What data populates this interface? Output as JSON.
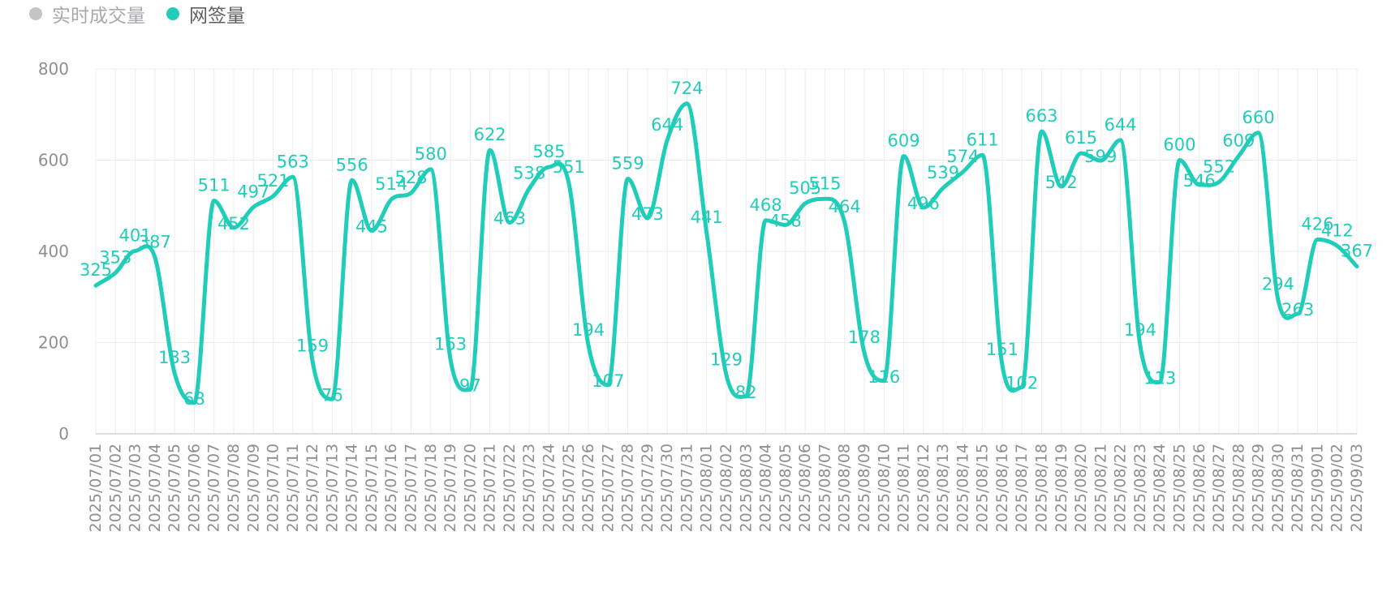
{
  "legend": [
    {
      "label": "实时成交量",
      "color": "#c4c4c8",
      "text_color": "#a8a8ad",
      "active": false
    },
    {
      "label": "网签量",
      "color": "#1fcdb9",
      "text_color": "#5f5f66",
      "active": true
    }
  ],
  "chart_data": {
    "type": "line",
    "title": "",
    "xlabel": "",
    "ylabel": "",
    "ylim": [
      0,
      800
    ],
    "yticks": [
      0,
      200,
      400,
      600,
      800
    ],
    "grid": true,
    "legend_position": "top-left",
    "categories": [
      "2025/07/01",
      "2025/07/02",
      "2025/07/03",
      "2025/07/04",
      "2025/07/05",
      "2025/07/06",
      "2025/07/07",
      "2025/07/08",
      "2025/07/09",
      "2025/07/10",
      "2025/07/11",
      "2025/07/12",
      "2025/07/13",
      "2025/07/14",
      "2025/07/15",
      "2025/07/16",
      "2025/07/17",
      "2025/07/18",
      "2025/07/19",
      "2025/07/20",
      "2025/07/21",
      "2025/07/22",
      "2025/07/23",
      "2025/07/24",
      "2025/07/25",
      "2025/07/26",
      "2025/07/27",
      "2025/07/28",
      "2025/07/29",
      "2025/07/30",
      "2025/07/31",
      "2025/08/01",
      "2025/08/02",
      "2025/08/03",
      "2025/08/04",
      "2025/08/05",
      "2025/08/06",
      "2025/08/07",
      "2025/08/08",
      "2025/08/09",
      "2025/08/10",
      "2025/08/11",
      "2025/08/12",
      "2025/08/13",
      "2025/08/14",
      "2025/08/15",
      "2025/08/16",
      "2025/08/17",
      "2025/08/18",
      "2025/08/19",
      "2025/08/20",
      "2025/08/21",
      "2025/08/22",
      "2025/08/23",
      "2025/08/24",
      "2025/08/25",
      "2025/08/26",
      "2025/08/27",
      "2025/08/28",
      "2025/08/29",
      "2025/08/30",
      "2025/08/31",
      "2025/09/01",
      "2025/09/02",
      "2025/09/03"
    ],
    "series": [
      {
        "name": "网签量",
        "color": "#1fcdb9",
        "values": [
          325,
          353,
          401,
          387,
          133,
          68,
          511,
          452,
          497,
          521,
          563,
          159,
          76,
          556,
          445,
          514,
          528,
          580,
          163,
          97,
          622,
          463,
          538,
          585,
          551,
          194,
          107,
          559,
          473,
          644,
          724,
          441,
          129,
          82,
          468,
          458,
          505,
          515,
          464,
          178,
          116,
          609,
          496,
          539,
          574,
          611,
          151,
          102,
          663,
          542,
          615,
          599,
          644,
          194,
          113,
          600,
          546,
          552,
          609,
          660,
          294,
          263,
          426,
          412,
          367
        ]
      }
    ]
  }
}
